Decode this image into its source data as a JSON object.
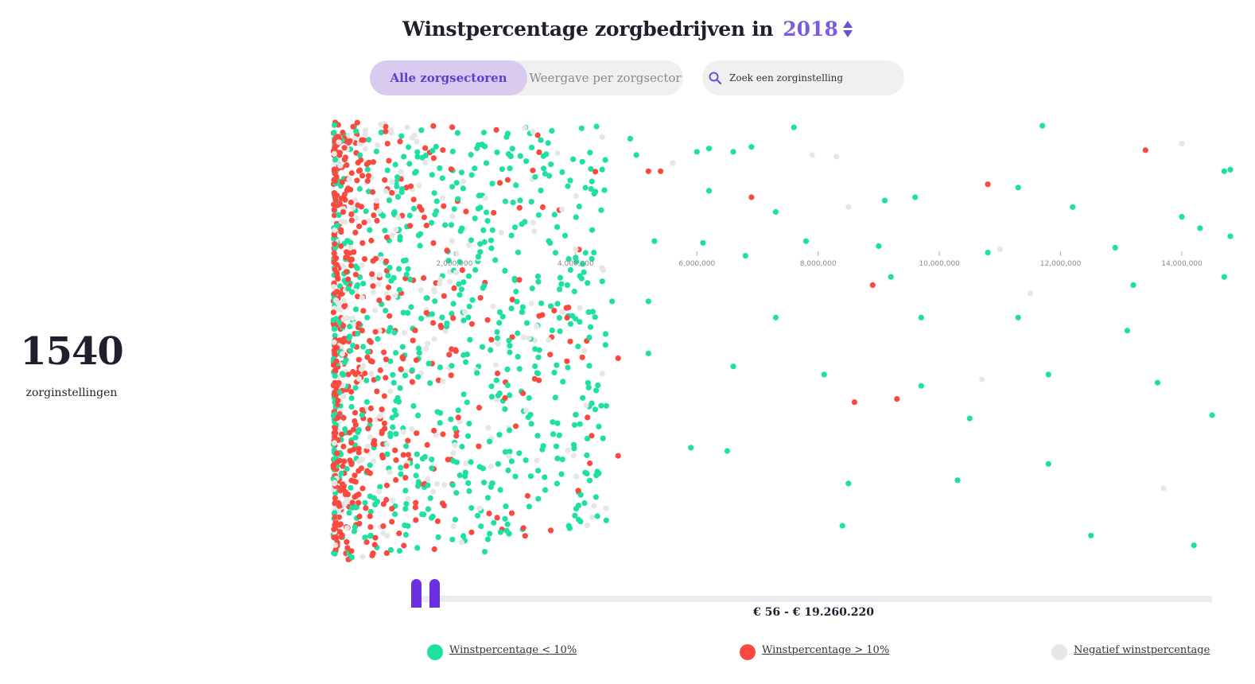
{
  "header": {
    "title": "Winstpercentage zorgbedrijven in",
    "year": "2018"
  },
  "toggle": {
    "active_label": "Alle zorgsectoren",
    "inactive_label": "Weergave per zorgsector"
  },
  "search": {
    "placeholder": "Zoek een zorginstelling"
  },
  "summary": {
    "count": "1540",
    "count_label": "zorginstellingen"
  },
  "slider": {
    "range_label": "€ 56 - € 19.260.220"
  },
  "legend": [
    {
      "label": "Winstpercentage < 10%",
      "color": "#1ee0a0"
    },
    {
      "label": "Winstpercentage > 10%",
      "color": "#fa4a3f"
    },
    {
      "label": "Negatief winstpercentage",
      "color": "#e6e6e6"
    }
  ],
  "chart_data": {
    "type": "scatter",
    "x_axis": {
      "ticks": [
        2000000,
        4000000,
        6000000,
        8000000,
        10000000,
        12000000,
        14000000
      ],
      "tick_labels": [
        "2,000,000",
        "4,000,000",
        "6,000,000",
        "8,000,000",
        "10,000,000",
        "12,000,000",
        "14,000,000"
      ],
      "range": [
        0,
        15000000
      ]
    },
    "series": [
      {
        "name": "Winstpercentage < 10%",
        "color": "#1ee0a0"
      },
      {
        "name": "Winstpercentage > 10%",
        "color": "#fa4a3f"
      },
      {
        "name": "Negatief winstpercentage",
        "color": "#e6e6e6"
      }
    ],
    "total_points": 1540,
    "sample_points": [
      {
        "x": 4900000,
        "y": 0.1,
        "s": 0
      },
      {
        "x": 5000000,
        "y": 0.2,
        "s": 0
      },
      {
        "x": 5200000,
        "y": 0.3,
        "s": 1
      },
      {
        "x": 5400000,
        "y": 0.3,
        "s": 1
      },
      {
        "x": 5600000,
        "y": 0.25,
        "s": 2
      },
      {
        "x": 6000000,
        "y": 0.18,
        "s": 0
      },
      {
        "x": 6200000,
        "y": 0.16,
        "s": 0
      },
      {
        "x": 6600000,
        "y": 0.18,
        "s": 0
      },
      {
        "x": 6900000,
        "y": 0.15,
        "s": 0
      },
      {
        "x": 7600000,
        "y": 0.03,
        "s": 0
      },
      {
        "x": 7900000,
        "y": 0.2,
        "s": 2
      },
      {
        "x": 8300000,
        "y": 0.21,
        "s": 2
      },
      {
        "x": 11700000,
        "y": 0.02,
        "s": 0
      },
      {
        "x": 13400000,
        "y": 0.17,
        "s": 1
      },
      {
        "x": 14000000,
        "y": 0.13,
        "s": 2
      },
      {
        "x": 14700000,
        "y": 0.3,
        "s": 0
      },
      {
        "x": 14800000,
        "y": 0.29,
        "s": 0
      },
      {
        "x": 6200000,
        "y": 0.42,
        "s": 0
      },
      {
        "x": 6900000,
        "y": 0.46,
        "s": 1
      },
      {
        "x": 7300000,
        "y": 0.55,
        "s": 0
      },
      {
        "x": 8500000,
        "y": 0.52,
        "s": 2
      },
      {
        "x": 9100000,
        "y": 0.48,
        "s": 0
      },
      {
        "x": 9600000,
        "y": 0.46,
        "s": 0
      },
      {
        "x": 10800000,
        "y": 0.38,
        "s": 1
      },
      {
        "x": 11300000,
        "y": 0.4,
        "s": 0
      },
      {
        "x": 12200000,
        "y": 0.52,
        "s": 0
      },
      {
        "x": 14000000,
        "y": 0.58,
        "s": 0
      },
      {
        "x": 14300000,
        "y": 0.65,
        "s": 0
      },
      {
        "x": 4000000,
        "y": 0.78,
        "s": 2
      },
      {
        "x": 4300000,
        "y": 0.8,
        "s": 0
      },
      {
        "x": 5300000,
        "y": 0.73,
        "s": 0
      },
      {
        "x": 6100000,
        "y": 0.74,
        "s": 0
      },
      {
        "x": 7800000,
        "y": 0.73,
        "s": 0
      },
      {
        "x": 9000000,
        "y": 0.76,
        "s": 0
      },
      {
        "x": 10800000,
        "y": 0.8,
        "s": 0
      },
      {
        "x": 11000000,
        "y": 0.78,
        "s": 2
      },
      {
        "x": 12900000,
        "y": 0.77,
        "s": 0
      },
      {
        "x": 14800000,
        "y": 0.7,
        "s": 0
      },
      {
        "x": 6800000,
        "y": 0.82,
        "s": 0
      },
      {
        "x": 8900000,
        "y": 1.0,
        "s": 1
      },
      {
        "x": 9200000,
        "y": 0.95,
        "s": 0
      },
      {
        "x": 11500000,
        "y": 1.05,
        "s": 2
      },
      {
        "x": 13200000,
        "y": 1.0,
        "s": 0
      },
      {
        "x": 14700000,
        "y": 0.95,
        "s": 0
      },
      {
        "x": 4600000,
        "y": 1.1,
        "s": 0
      },
      {
        "x": 5200000,
        "y": 1.1,
        "s": 0
      },
      {
        "x": 7300000,
        "y": 1.2,
        "s": 0
      },
      {
        "x": 9700000,
        "y": 1.2,
        "s": 0
      },
      {
        "x": 11300000,
        "y": 1.2,
        "s": 0
      },
      {
        "x": 13100000,
        "y": 1.28,
        "s": 0
      },
      {
        "x": 3400000,
        "y": 1.4,
        "s": 0
      },
      {
        "x": 4700000,
        "y": 1.45,
        "s": 1
      },
      {
        "x": 5200000,
        "y": 1.42,
        "s": 0
      },
      {
        "x": 6600000,
        "y": 1.5,
        "s": 0
      },
      {
        "x": 8100000,
        "y": 1.55,
        "s": 0
      },
      {
        "x": 9700000,
        "y": 1.62,
        "s": 0
      },
      {
        "x": 10700000,
        "y": 1.58,
        "s": 2
      },
      {
        "x": 11800000,
        "y": 1.55,
        "s": 0
      },
      {
        "x": 13600000,
        "y": 1.6,
        "s": 0
      },
      {
        "x": 14500000,
        "y": 1.8,
        "s": 0
      },
      {
        "x": 8600000,
        "y": 1.72,
        "s": 1
      },
      {
        "x": 9300000,
        "y": 1.7,
        "s": 1
      },
      {
        "x": 10500000,
        "y": 1.82,
        "s": 0
      },
      {
        "x": 3700000,
        "y": 1.85,
        "s": 0
      },
      {
        "x": 5900000,
        "y": 2.0,
        "s": 0
      },
      {
        "x": 4700000,
        "y": 2.05,
        "s": 1
      },
      {
        "x": 6500000,
        "y": 2.02,
        "s": 0
      },
      {
        "x": 8500000,
        "y": 2.22,
        "s": 0
      },
      {
        "x": 10300000,
        "y": 2.2,
        "s": 0
      },
      {
        "x": 11800000,
        "y": 2.1,
        "s": 0
      },
      {
        "x": 13700000,
        "y": 2.25,
        "s": 2
      },
      {
        "x": 8400000,
        "y": 2.48,
        "s": 0
      },
      {
        "x": 12500000,
        "y": 2.54,
        "s": 0
      },
      {
        "x": 2500000,
        "y": 2.64,
        "s": 0
      },
      {
        "x": 14200000,
        "y": 2.6,
        "s": 0
      }
    ]
  }
}
